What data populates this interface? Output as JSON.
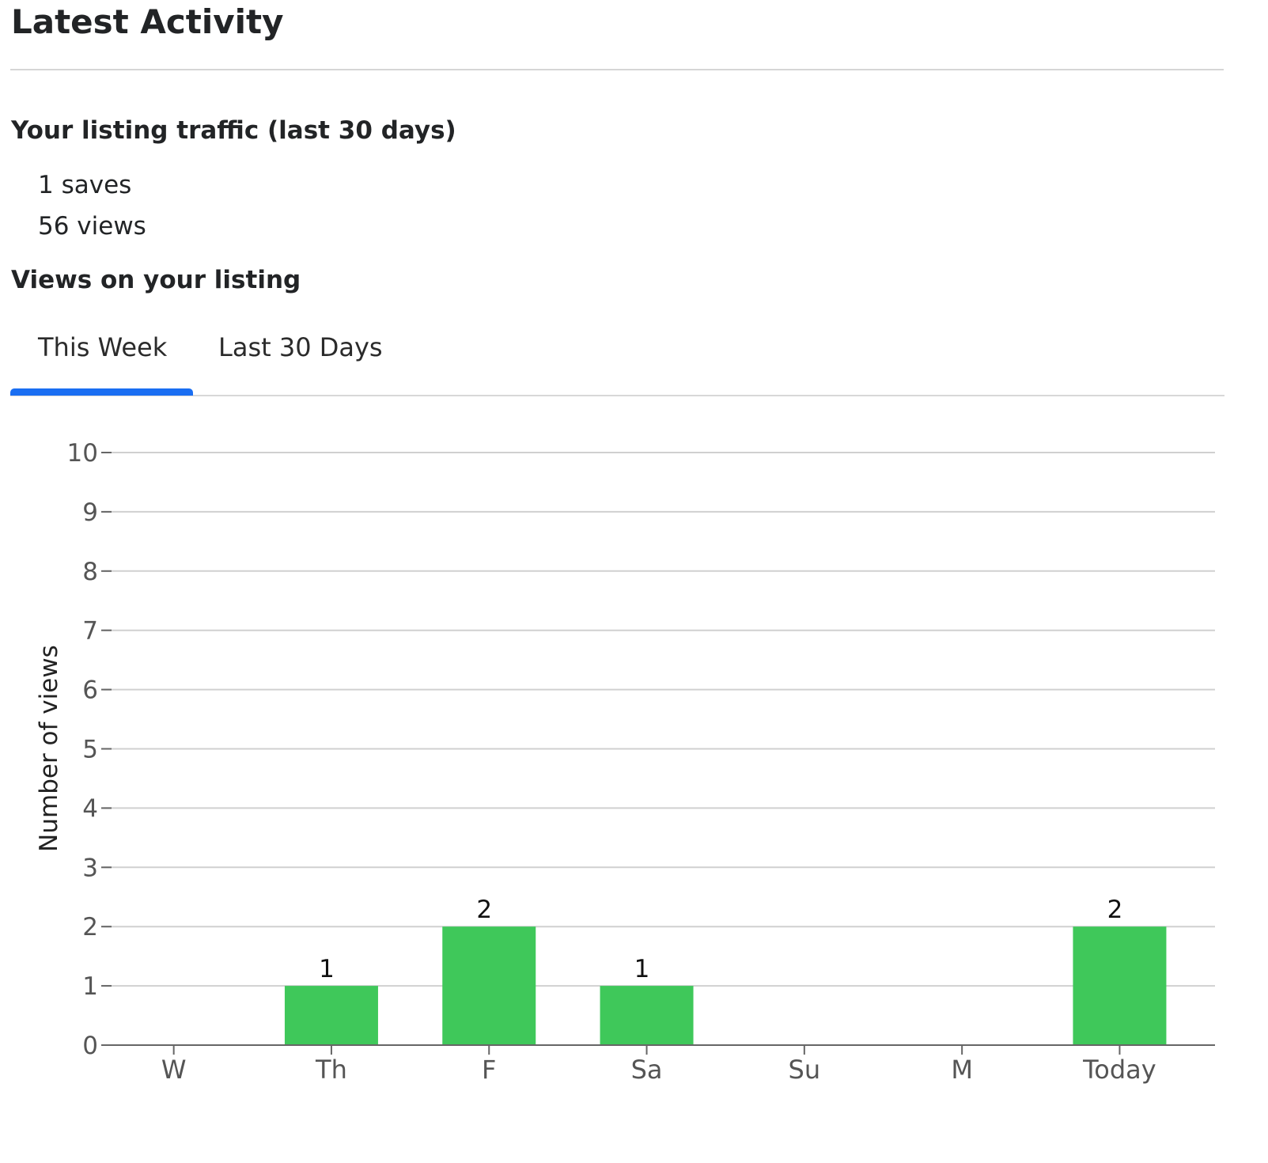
{
  "page": {
    "title": "Latest Activity"
  },
  "traffic": {
    "heading": "Your listing traffic (last 30 days)",
    "saves": "1 saves",
    "views": "56 views"
  },
  "views_section": {
    "heading": "Views on your listing",
    "tabs": [
      {
        "label": "This Week",
        "active": true
      },
      {
        "label": "Last 30 Days",
        "active": false
      }
    ]
  },
  "colors": {
    "accent": "#1a6ef2",
    "bar": "#3fc85a",
    "grid": "#d0d0d0",
    "axis": "#666666",
    "tick_text": "#555555"
  },
  "chart_data": {
    "type": "bar",
    "categories": [
      "W",
      "Th",
      "F",
      "Sa",
      "Su",
      "M",
      "Today"
    ],
    "values": [
      0,
      1,
      2,
      1,
      0,
      0,
      2
    ],
    "data_labels": [
      "",
      "1",
      "2",
      "1",
      "",
      "",
      "2"
    ],
    "ylabel": "Number of views",
    "xlabel": "",
    "ylim": [
      0,
      10
    ],
    "yticks": [
      0,
      1,
      2,
      3,
      4,
      5,
      6,
      7,
      8,
      9,
      10
    ],
    "grid": true
  }
}
